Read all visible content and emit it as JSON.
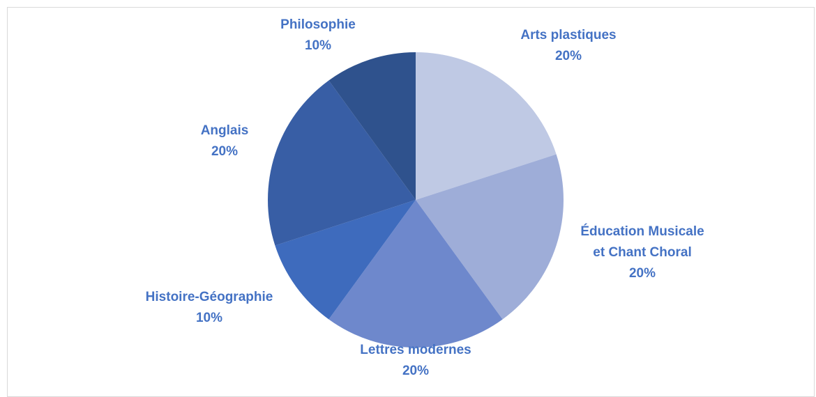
{
  "chart_data": {
    "type": "pie",
    "slices": [
      {
        "name": "Arts plastiques",
        "value": 20,
        "label_lines": [
          "Arts plastiques",
          "20%"
        ],
        "color": "#bfc9e4"
      },
      {
        "name": "Éducation Musicale et Chant Choral",
        "value": 20,
        "label_lines": [
          "Éducation Musicale",
          "et Chant Choral",
          "20%"
        ],
        "color": "#9eadd8"
      },
      {
        "name": "Lettres modernes",
        "value": 20,
        "label_lines": [
          "Lettres modernes",
          "20%"
        ],
        "color": "#6e88cc"
      },
      {
        "name": "Histoire-Géographie",
        "value": 10,
        "label_lines": [
          "Histoire-Géographie",
          "10%"
        ],
        "color": "#3e6bbd"
      },
      {
        "name": "Anglais",
        "value": 20,
        "label_lines": [
          "Anglais",
          "20%"
        ],
        "color": "#385ea5"
      },
      {
        "name": "Philosophie",
        "value": 10,
        "label_lines": [
          "Philosophie",
          "10%"
        ],
        "color": "#2f528d"
      }
    ],
    "label_color": "#4472c4",
    "start_angle_deg": 0,
    "direction": "clockwise"
  }
}
